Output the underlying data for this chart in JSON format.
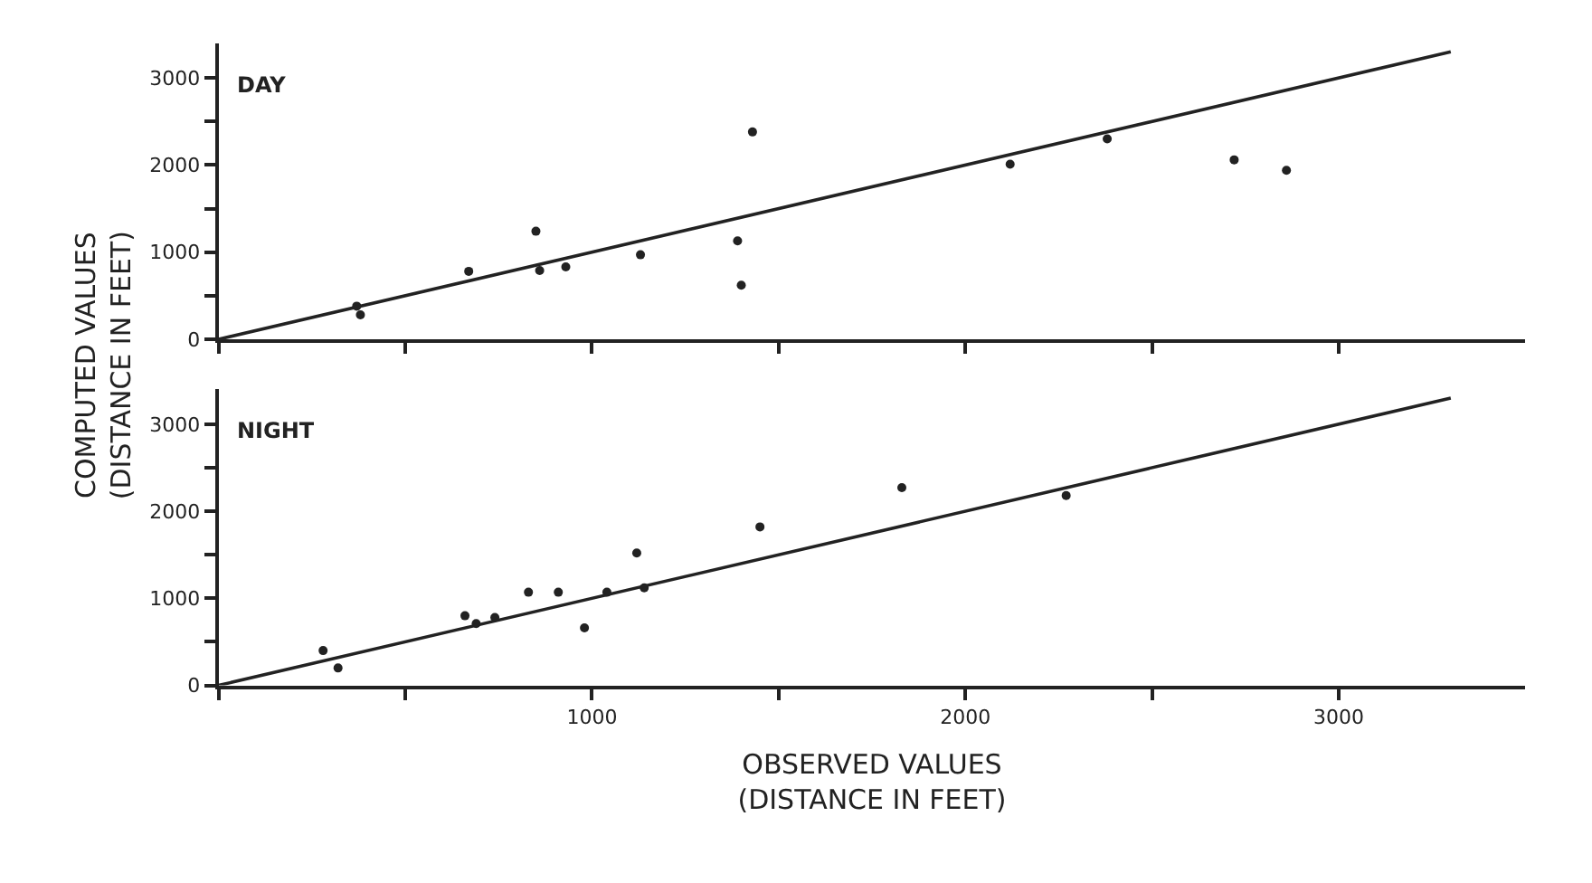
{
  "chart_data": [
    {
      "type": "scatter",
      "title": "DAY",
      "ylabel": "COMPUTED VALUES\n(DISTANCE IN FEET)",
      "tick_labels": "y",
      "xlim": [
        0,
        3500
      ],
      "ylim": [
        0,
        3400
      ],
      "xticks": [
        {
          "value": 0,
          "label": null
        },
        {
          "value": 500,
          "label": null
        },
        {
          "value": 1000,
          "label": null
        },
        {
          "value": 1500,
          "label": null
        },
        {
          "value": 2000,
          "label": null
        },
        {
          "value": 2500,
          "label": null
        },
        {
          "value": 3000,
          "label": null
        }
      ],
      "yticks": [
        0,
        {
          "value": 500,
          "label": null
        },
        1000,
        {
          "value": 1500,
          "label": null
        },
        2000,
        {
          "value": 2500,
          "label": null
        },
        3000
      ],
      "series": [
        {
          "marker": "circle",
          "color": "#222222",
          "x": [
            2860,
            2720,
            2380,
            2120,
            1430,
            1390,
            1400,
            1130,
            930,
            860,
            850,
            670,
            370,
            380
          ],
          "values": [
            1940,
            2060,
            2300,
            2010,
            2380,
            1130,
            620,
            970,
            830,
            790,
            1240,
            780,
            380,
            280
          ]
        },
        {
          "type": "line",
          "color": "#222222",
          "x": [
            0,
            3300
          ],
          "values": [
            0,
            3300
          ]
        }
      ]
    },
    {
      "type": "scatter",
      "title": "NIGHT",
      "xlabel": "OBSERVED VALUES\n(DISTANCE IN FEET)",
      "xlim": [
        0,
        3500
      ],
      "ylim": [
        0,
        3400
      ],
      "xticks": [
        {
          "value": 0,
          "label": null
        },
        {
          "value": 500,
          "label": null
        },
        1000,
        {
          "value": 1500,
          "label": null
        },
        2000,
        {
          "value": 2500,
          "label": null
        },
        3000
      ],
      "yticks": [
        0,
        {
          "value": 500,
          "label": null
        },
        1000,
        {
          "value": 1500,
          "label": null
        },
        2000,
        {
          "value": 2500,
          "label": null
        },
        3000
      ],
      "series": [
        {
          "marker": "circle",
          "color": "#222222",
          "x": [
            2270,
            1830,
            1450,
            1120,
            1140,
            1040,
            910,
            830,
            980,
            740,
            690,
            660,
            280,
            320
          ],
          "values": [
            2180,
            2270,
            1820,
            1520,
            1120,
            1070,
            1070,
            1070,
            660,
            780,
            710,
            800,
            400,
            200
          ]
        },
        {
          "type": "line",
          "color": "#222222",
          "x": [
            0,
            3300
          ],
          "values": [
            0,
            3300
          ]
        }
      ]
    }
  ]
}
